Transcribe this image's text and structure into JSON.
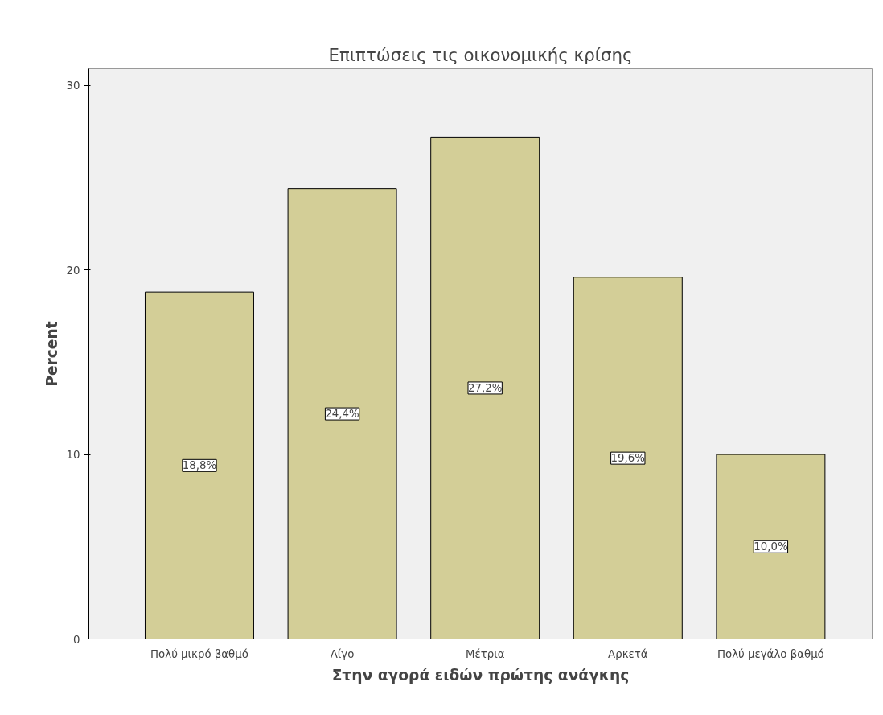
{
  "chart_data": {
    "type": "bar",
    "title": "Επιπτώσεις τις οικονομικής κρίσης",
    "xlabel": "Στην αγορά ειδών πρώτης ανάγκης",
    "ylabel": "Percent",
    "categories": [
      "Πολύ μικρό βαθμό",
      "Λίγο",
      "Μέτρια",
      "Αρκετά",
      "Πολύ μεγάλο βαθμό"
    ],
    "values": [
      18.8,
      24.4,
      27.2,
      19.6,
      10.0
    ],
    "value_labels": [
      "18,8%",
      "24,4%",
      "27,2%",
      "19,6%",
      "10,0%"
    ],
    "color": "#d3ce97",
    "ylim": [
      0,
      30.9
    ],
    "yticks": [
      0,
      10,
      20,
      30
    ],
    "grid": false
  }
}
